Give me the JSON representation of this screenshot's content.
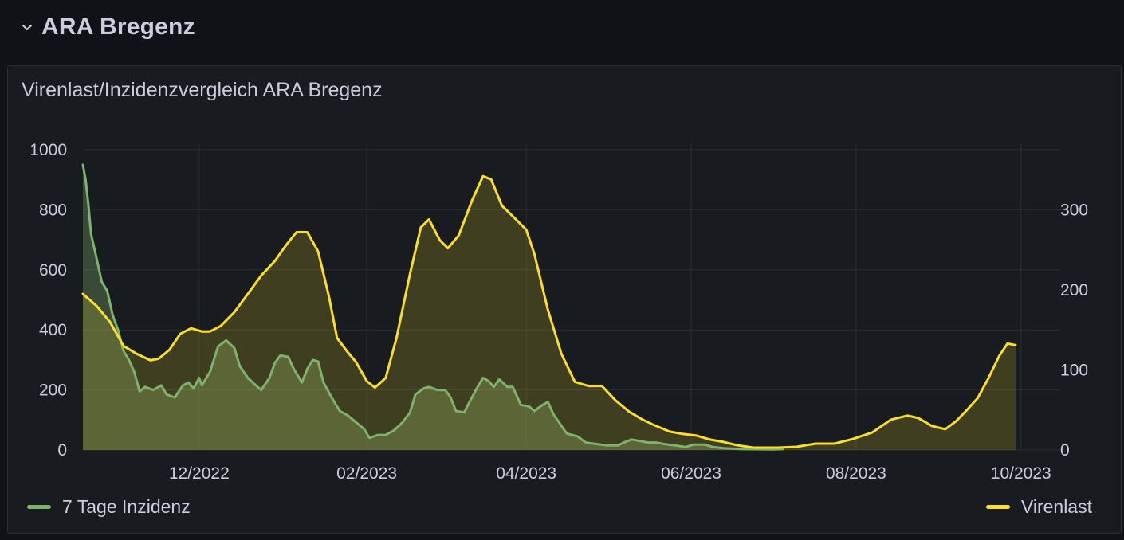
{
  "row": {
    "title": "ARA Bregenz",
    "icon": "chevron-down-icon"
  },
  "panel": {
    "title": "Virenlast/Inzidenzvergleich ARA Bregenz"
  },
  "colors": {
    "green": "#7eb26d",
    "yellow": "#fade2a",
    "grid": "#2a2d33",
    "background": "#181b1f"
  },
  "chart_data": {
    "type": "area",
    "title": "Virenlast/Inzidenzvergleich ARA Bregenz",
    "x_range": [
      "2022-10-19",
      "2023-09-29"
    ],
    "x_ticks": [
      {
        "date": "2022-12-01",
        "label": "12/2022"
      },
      {
        "date": "2023-02-01",
        "label": "02/2023"
      },
      {
        "date": "2023-04-01",
        "label": "04/2023"
      },
      {
        "date": "2023-06-01",
        "label": "06/2023"
      },
      {
        "date": "2023-08-01",
        "label": "08/2023"
      },
      {
        "date": "2023-10-01",
        "label": "10/2023"
      }
    ],
    "y_left": {
      "range": [
        0,
        1000
      ],
      "ticks": [
        "0",
        "200",
        "400",
        "600",
        "800",
        "1000"
      ]
    },
    "y_right": {
      "range": [
        0,
        375
      ],
      "ticks": [
        "0",
        "100",
        "200",
        "300"
      ]
    },
    "grid": true,
    "legend_placement": "bottom",
    "series": [
      {
        "name": "7 Tage Inzidenz",
        "axis": "left",
        "color": "#7eb26d",
        "points": [
          [
            "2022-10-19",
            950
          ],
          [
            "2022-10-20",
            900
          ],
          [
            "2022-10-21",
            820
          ],
          [
            "2022-10-22",
            720
          ],
          [
            "2022-10-24",
            640
          ],
          [
            "2022-10-26",
            560
          ],
          [
            "2022-10-28",
            530
          ],
          [
            "2022-10-30",
            450
          ],
          [
            "2022-11-01",
            400
          ],
          [
            "2022-11-03",
            330
          ],
          [
            "2022-11-05",
            300
          ],
          [
            "2022-11-07",
            260
          ],
          [
            "2022-11-09",
            195
          ],
          [
            "2022-11-11",
            210
          ],
          [
            "2022-11-14",
            200
          ],
          [
            "2022-11-17",
            215
          ],
          [
            "2022-11-19",
            185
          ],
          [
            "2022-11-22",
            175
          ],
          [
            "2022-11-25",
            215
          ],
          [
            "2022-11-27",
            225
          ],
          [
            "2022-11-29",
            205
          ],
          [
            "2022-12-01",
            240
          ],
          [
            "2022-12-02",
            215
          ],
          [
            "2022-12-05",
            260
          ],
          [
            "2022-12-08",
            345
          ],
          [
            "2022-12-11",
            365
          ],
          [
            "2022-12-14",
            340
          ],
          [
            "2022-12-16",
            280
          ],
          [
            "2022-12-19",
            240
          ],
          [
            "2022-12-22",
            215
          ],
          [
            "2022-12-24",
            200
          ],
          [
            "2022-12-27",
            240
          ],
          [
            "2022-12-29",
            290
          ],
          [
            "2022-12-31",
            315
          ],
          [
            "2023-01-03",
            310
          ],
          [
            "2023-01-05",
            270
          ],
          [
            "2023-01-08",
            225
          ],
          [
            "2023-01-10",
            270
          ],
          [
            "2023-01-12",
            300
          ],
          [
            "2023-01-14",
            295
          ],
          [
            "2023-01-16",
            225
          ],
          [
            "2023-01-19",
            175
          ],
          [
            "2023-01-22",
            130
          ],
          [
            "2023-01-25",
            115
          ],
          [
            "2023-01-27",
            100
          ],
          [
            "2023-01-29",
            85
          ],
          [
            "2023-01-31",
            70
          ],
          [
            "2023-02-02",
            40
          ],
          [
            "2023-02-05",
            50
          ],
          [
            "2023-02-08",
            50
          ],
          [
            "2023-02-11",
            65
          ],
          [
            "2023-02-14",
            90
          ],
          [
            "2023-02-17",
            125
          ],
          [
            "2023-02-19",
            185
          ],
          [
            "2023-02-22",
            205
          ],
          [
            "2023-02-24",
            210
          ],
          [
            "2023-02-27",
            200
          ],
          [
            "2023-03-02",
            200
          ],
          [
            "2023-03-04",
            175
          ],
          [
            "2023-03-06",
            130
          ],
          [
            "2023-03-09",
            125
          ],
          [
            "2023-03-11",
            160
          ],
          [
            "2023-03-14",
            210
          ],
          [
            "2023-03-16",
            240
          ],
          [
            "2023-03-18",
            230
          ],
          [
            "2023-03-20",
            210
          ],
          [
            "2023-03-22",
            235
          ],
          [
            "2023-03-25",
            210
          ],
          [
            "2023-03-27",
            210
          ],
          [
            "2023-03-30",
            150
          ],
          [
            "2023-04-02",
            145
          ],
          [
            "2023-04-04",
            130
          ],
          [
            "2023-04-07",
            150
          ],
          [
            "2023-04-09",
            160
          ],
          [
            "2023-04-11",
            120
          ],
          [
            "2023-04-14",
            80
          ],
          [
            "2023-04-16",
            55
          ],
          [
            "2023-04-20",
            45
          ],
          [
            "2023-04-23",
            25
          ],
          [
            "2023-04-27",
            20
          ],
          [
            "2023-05-01",
            15
          ],
          [
            "2023-05-05",
            15
          ],
          [
            "2023-05-07",
            25
          ],
          [
            "2023-05-10",
            35
          ],
          [
            "2023-05-13",
            30
          ],
          [
            "2023-05-16",
            25
          ],
          [
            "2023-05-19",
            25
          ],
          [
            "2023-05-22",
            20
          ],
          [
            "2023-05-26",
            15
          ],
          [
            "2023-05-30",
            10
          ],
          [
            "2023-06-02",
            18
          ],
          [
            "2023-06-06",
            18
          ],
          [
            "2023-06-09",
            10
          ],
          [
            "2023-06-13",
            6
          ],
          [
            "2023-06-20",
            3
          ],
          [
            "2023-07-01",
            2
          ],
          [
            "2023-07-05",
            3
          ]
        ]
      },
      {
        "name": "Virenlast",
        "axis": "right",
        "color": "#fade2a",
        "points": [
          [
            "2022-10-19",
            195
          ],
          [
            "2022-10-24",
            180
          ],
          [
            "2022-10-29",
            160
          ],
          [
            "2022-11-03",
            130
          ],
          [
            "2022-11-08",
            120
          ],
          [
            "2022-11-13",
            112
          ],
          [
            "2022-11-16",
            114
          ],
          [
            "2022-11-20",
            125
          ],
          [
            "2022-11-24",
            145
          ],
          [
            "2022-11-28",
            152
          ],
          [
            "2022-12-02",
            148
          ],
          [
            "2022-12-05",
            148
          ],
          [
            "2022-12-09",
            155
          ],
          [
            "2022-12-14",
            172
          ],
          [
            "2022-12-19",
            195
          ],
          [
            "2022-12-24",
            218
          ],
          [
            "2022-12-29",
            236
          ],
          [
            "2023-01-02",
            255
          ],
          [
            "2023-01-06",
            272
          ],
          [
            "2023-01-10",
            272
          ],
          [
            "2023-01-14",
            248
          ],
          [
            "2023-01-18",
            192
          ],
          [
            "2023-01-21",
            140
          ],
          [
            "2023-01-25",
            122
          ],
          [
            "2023-01-28",
            110
          ],
          [
            "2023-02-01",
            86
          ],
          [
            "2023-02-04",
            78
          ],
          [
            "2023-02-08",
            90
          ],
          [
            "2023-02-12",
            140
          ],
          [
            "2023-02-17",
            220
          ],
          [
            "2023-02-21",
            278
          ],
          [
            "2023-02-24",
            288
          ],
          [
            "2023-02-28",
            262
          ],
          [
            "2023-03-03",
            252
          ],
          [
            "2023-03-07",
            268
          ],
          [
            "2023-03-12",
            312
          ],
          [
            "2023-03-16",
            342
          ],
          [
            "2023-03-19",
            338
          ],
          [
            "2023-03-23",
            305
          ],
          [
            "2023-03-27",
            292
          ],
          [
            "2023-04-01",
            275
          ],
          [
            "2023-04-04",
            245
          ],
          [
            "2023-04-09",
            175
          ],
          [
            "2023-04-14",
            120
          ],
          [
            "2023-04-19",
            85
          ],
          [
            "2023-04-24",
            80
          ],
          [
            "2023-04-29",
            80
          ],
          [
            "2023-05-04",
            62
          ],
          [
            "2023-05-09",
            48
          ],
          [
            "2023-05-14",
            38
          ],
          [
            "2023-05-19",
            30
          ],
          [
            "2023-05-24",
            23
          ],
          [
            "2023-05-29",
            20
          ],
          [
            "2023-06-03",
            18
          ],
          [
            "2023-06-08",
            13
          ],
          [
            "2023-06-13",
            10
          ],
          [
            "2023-06-18",
            6
          ],
          [
            "2023-06-24",
            3
          ],
          [
            "2023-07-03",
            3
          ],
          [
            "2023-07-10",
            4
          ],
          [
            "2023-07-17",
            8
          ],
          [
            "2023-07-24",
            8
          ],
          [
            "2023-07-31",
            14
          ],
          [
            "2023-08-07",
            22
          ],
          [
            "2023-08-14",
            38
          ],
          [
            "2023-08-20",
            43
          ],
          [
            "2023-08-24",
            40
          ],
          [
            "2023-08-29",
            30
          ],
          [
            "2023-09-03",
            26
          ],
          [
            "2023-09-07",
            36
          ],
          [
            "2023-09-11",
            50
          ],
          [
            "2023-09-15",
            65
          ],
          [
            "2023-09-19",
            90
          ],
          [
            "2023-09-23",
            118
          ],
          [
            "2023-09-26",
            133
          ],
          [
            "2023-09-29",
            131
          ]
        ]
      }
    ]
  }
}
